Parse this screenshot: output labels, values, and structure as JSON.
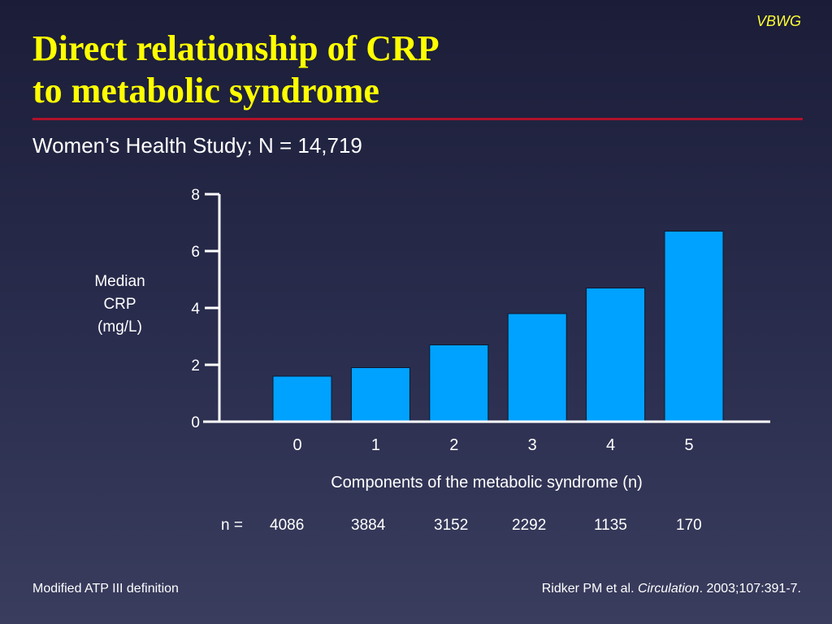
{
  "header": {
    "brand": "VBWG",
    "title_line1": "Direct relationship of CRP",
    "title_line2": "to metabolic syndrome",
    "subtitle": "Women’s Health Study; N = 14,719"
  },
  "colors": {
    "title": "#ffff00",
    "rule": "#b0112a",
    "bar": "#00a2ff",
    "text": "#ffffff"
  },
  "chart_data": {
    "type": "bar",
    "categories": [
      "0",
      "1",
      "2",
      "3",
      "4",
      "5"
    ],
    "values": [
      1.6,
      1.9,
      2.7,
      3.8,
      4.7,
      6.7
    ],
    "ylabel_lines": [
      "Median",
      "CRP",
      "(mg/L)"
    ],
    "xlabel": "Components of the metabolic syndrome (n)",
    "ylim": [
      0,
      8
    ],
    "yticks": [
      0,
      2,
      4,
      6,
      8
    ],
    "grid": false,
    "n_label": "n =",
    "n_values": [
      "4086",
      "3884",
      "3152",
      "2292",
      "1135",
      "170"
    ]
  },
  "footer": {
    "left": "Modified ATP III definition",
    "citation_author": "Ridker PM et al. ",
    "citation_journal": "Circulation",
    "citation_details": ". 2003;107:391-7."
  }
}
